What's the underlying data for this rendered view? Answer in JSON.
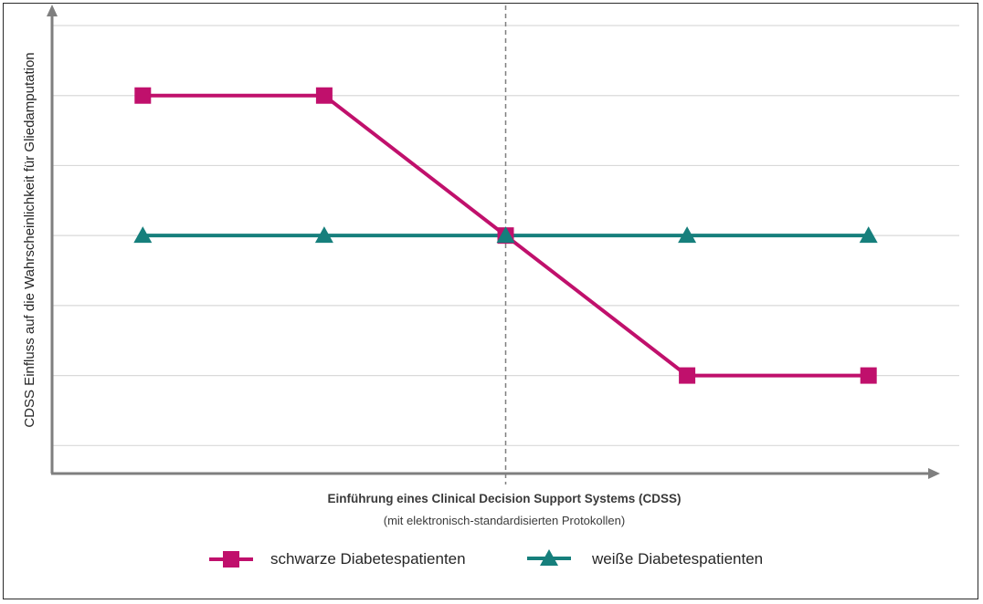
{
  "chart_data": {
    "type": "line",
    "title": "",
    "ylabel": "CDSS Einfluss auf die Wahrscheinlichkeit für Gliedamputation",
    "xlabel": "Einführung eines Clinical Decision Support Systems (CDSS)",
    "xsublabel": "(mit elektronisch-standardisierten Protokollen)",
    "x": [
      1,
      2,
      3,
      4,
      5
    ],
    "xlim": [
      0.5,
      5.5
    ],
    "ylim": [
      0,
      6.4
    ],
    "y_gridlines": [
      0.4,
      1.4,
      2.4,
      3.4,
      4.4,
      5.4,
      6.4
    ],
    "grid": true,
    "tick_labels_shown": false,
    "intervention_x": 3,
    "series": [
      {
        "name": "schwarze Diabetespatienten",
        "values": [
          5.4,
          5.4,
          3.4,
          1.4,
          1.4
        ],
        "color": "#c0106c",
        "marker": "square"
      },
      {
        "name": "weiße Diabetespatienten",
        "values": [
          3.4,
          3.4,
          3.4,
          3.4,
          3.4
        ],
        "color": "#167f7c",
        "marker": "triangle"
      }
    ],
    "legend_position": "bottom-center"
  }
}
